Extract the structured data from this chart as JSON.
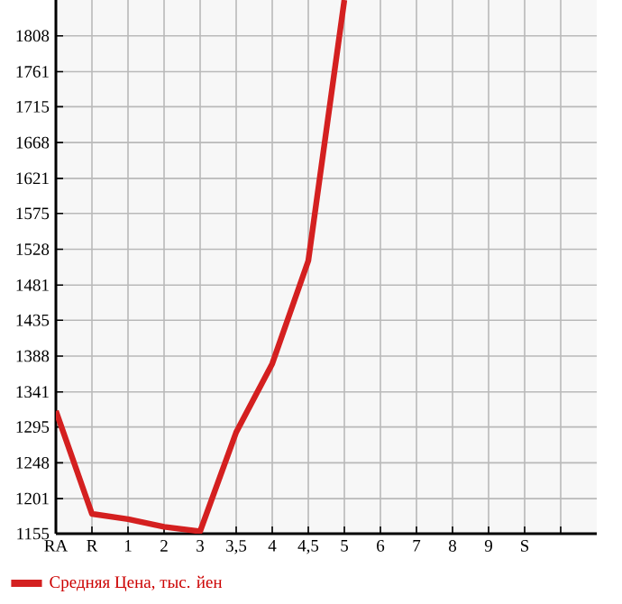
{
  "chart_data": {
    "type": "line",
    "categories": [
      "RA",
      "R",
      "1",
      "2",
      "3",
      "3,5",
      "4",
      "4,5",
      "5",
      "6",
      "7",
      "8",
      "9",
      "S",
      null
    ],
    "series": [
      {
        "name": "Средняя Цена, тыс. йен",
        "color": "#d42020",
        "values": [
          1316,
          1181,
          1174,
          1164,
          1158,
          1288,
          1378,
          1513,
          1855,
          null,
          null,
          null,
          null,
          null,
          null
        ]
      }
    ],
    "ylim": [
      1155,
      1855
    ],
    "yticks": [
      1155,
      1201,
      1248,
      1295,
      1341,
      1388,
      1435,
      1481,
      1528,
      1575,
      1621,
      1668,
      1715,
      1761,
      1808
    ],
    "grid": true,
    "legend": "bottom left",
    "marker": "none",
    "line_style": "solid"
  }
}
